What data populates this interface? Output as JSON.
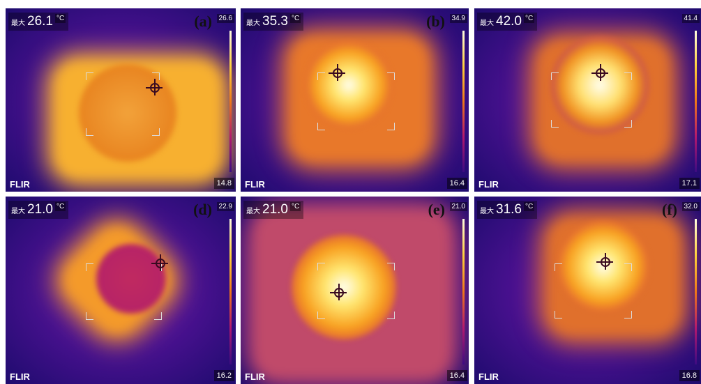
{
  "common": {
    "max_label": "最大",
    "unit": "°C",
    "logo": "FLIR"
  },
  "panels": [
    {
      "max": "26.1",
      "label": "(a)",
      "scale_top": "26.6",
      "scale_bottom": "14.8"
    },
    {
      "max": "35.3",
      "label": "(b)",
      "scale_top": "34.9",
      "scale_bottom": "16.4"
    },
    {
      "max": "42.0",
      "scale_top": "41.4",
      "scale_bottom": "17.1"
    },
    {
      "max": "21.0",
      "label": "(d)",
      "scale_top": "22.9",
      "scale_bottom": "16.2"
    },
    {
      "max": "21.0",
      "label": "(e)",
      "scale_top": "21.0",
      "scale_bottom": "16.4"
    },
    {
      "max": "31.6",
      "label": "(f)",
      "scale_top": "32.0",
      "scale_bottom": "16.8"
    }
  ]
}
